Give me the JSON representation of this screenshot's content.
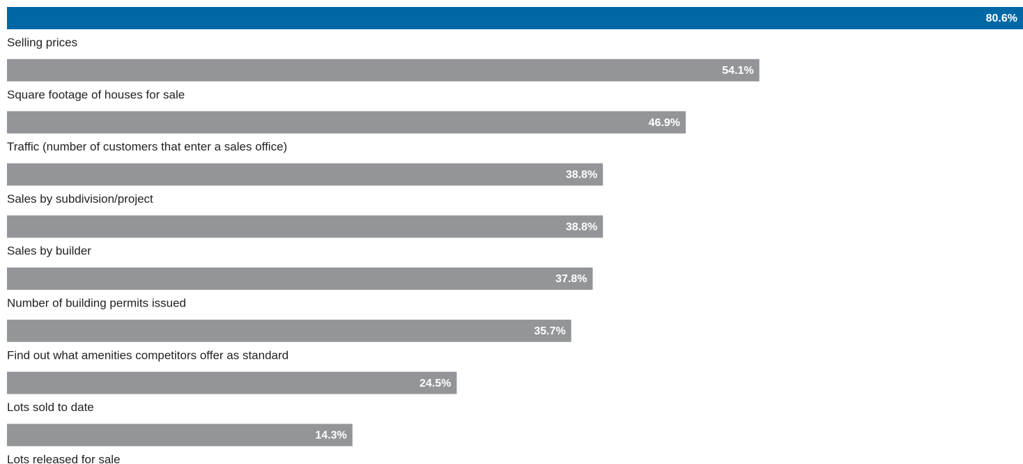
{
  "chart_data": {
    "type": "bar",
    "categories": [
      "Selling prices",
      "Square footage of houses for sale",
      "Traffic (number of customers that enter a sales office)",
      "Sales by subdivision/project",
      "Sales by builder",
      "Number of building permits issued",
      "Find out what amenities competitors offer as standard",
      "Lots sold to date",
      "Lots released for sale"
    ],
    "values": [
      80.6,
      54.1,
      46.9,
      38.8,
      38.8,
      37.8,
      35.7,
      24.5,
      14.3
    ],
    "value_labels": [
      "80.6%",
      "54.1%",
      "46.9%",
      "38.8%",
      "38.8%",
      "37.8%",
      "35.7%",
      "24.5%",
      "14.3%"
    ],
    "colors": [
      "#0068a5",
      "#939598",
      "#939598",
      "#939598",
      "#939598",
      "#939598",
      "#939598",
      "#939598",
      "#939598"
    ]
  }
}
